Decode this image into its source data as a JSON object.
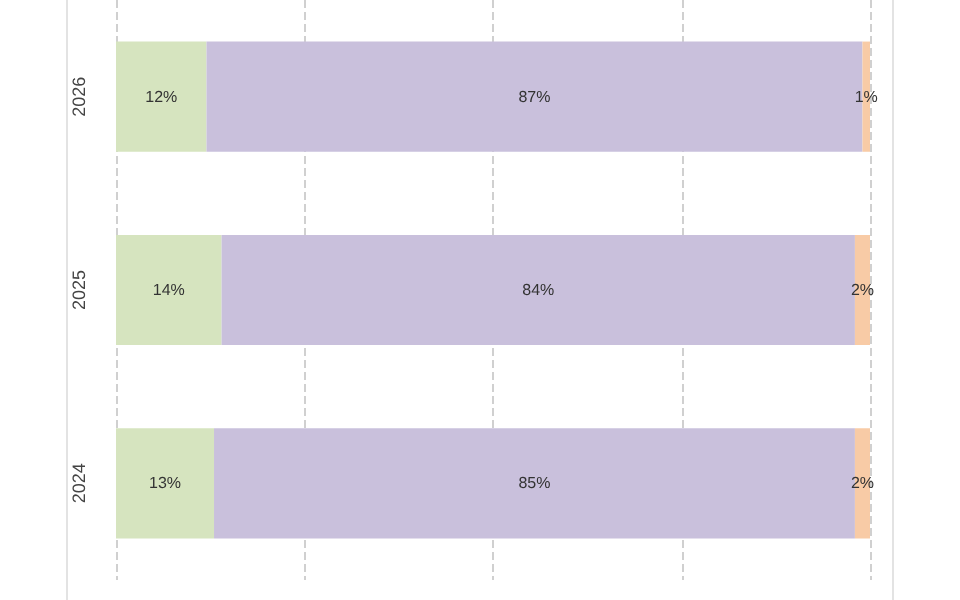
{
  "chart_data": {
    "type": "bar",
    "orientation": "horizontal",
    "stacked": true,
    "categories": [
      "2026",
      "2025",
      "2024"
    ],
    "series": [
      {
        "color": "#d6e4bf",
        "values": [
          12,
          14,
          13
        ],
        "value_labels": [
          "12%",
          "14%",
          "13%"
        ]
      },
      {
        "color": "#c9c0dc",
        "values": [
          87,
          84,
          85
        ],
        "value_labels": [
          "87%",
          "84%",
          "85%"
        ]
      },
      {
        "color": "#f8cba6",
        "values": [
          1,
          2,
          2
        ],
        "value_labels": [
          "1%",
          "2%",
          "2%"
        ]
      }
    ],
    "xlim": [
      0,
      100
    ],
    "xticks": [
      {
        "value": 0,
        "label": null
      },
      {
        "value": 25,
        "label": null
      },
      {
        "value": 50,
        "label": null
      },
      {
        "value": 75,
        "label": null
      },
      {
        "value": 100,
        "label": null
      }
    ],
    "grid": "x",
    "tick_labels": "y"
  }
}
